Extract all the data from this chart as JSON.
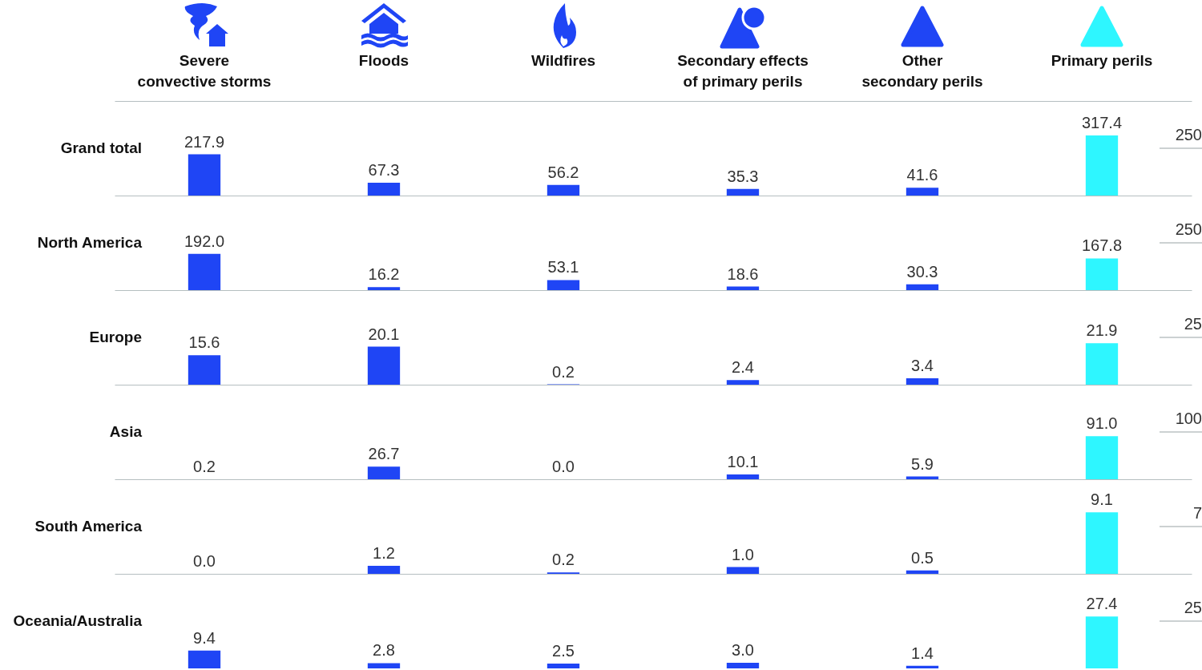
{
  "chart_data": [
    {
      "type": "bar",
      "title": "Grand total",
      "categories": [
        "Severe convective storms",
        "Floods",
        "Wildfires",
        "Secondary effects of primary perils",
        "Other secondary perils",
        "Primary perils"
      ],
      "values": [
        217.9,
        67.3,
        56.2,
        35.3,
        41.6,
        317.4
      ],
      "value_labels": [
        "217.9",
        "67.3",
        "56.2",
        "35.3",
        "41.6",
        "317.4"
      ],
      "colors": [
        "#1f45f5",
        "#1f45f5",
        "#1f45f5",
        "#1f45f5",
        "#1f45f5",
        "#2ef6ff"
      ],
      "ref_lines": [
        {
          "axis": "y",
          "value": 250,
          "label": "250"
        }
      ],
      "tick_labels": "x"
    },
    {
      "type": "bar",
      "title": "North America",
      "categories": [
        null,
        null,
        null,
        null,
        null,
        null
      ],
      "values": [
        192.0,
        16.2,
        53.1,
        18.6,
        30.3,
        167.8
      ],
      "value_labels": [
        "192.0",
        "16.2",
        "53.1",
        "18.6",
        "30.3",
        "167.8"
      ],
      "colors": [
        "#1f45f5",
        "#1f45f5",
        "#1f45f5",
        "#1f45f5",
        "#1f45f5",
        "#2ef6ff"
      ],
      "ref_lines": [
        {
          "axis": "y",
          "value": 250,
          "label": "250"
        }
      ],
      "tick_labels": false
    },
    {
      "type": "bar",
      "title": "Europe",
      "categories": [
        null,
        null,
        null,
        null,
        null,
        null
      ],
      "values": [
        15.6,
        20.1,
        0.2,
        2.4,
        3.4,
        21.9
      ],
      "value_labels": [
        "15.6",
        "20.1",
        "0.2",
        "2.4",
        "3.4",
        "21.9"
      ],
      "colors": [
        "#1f45f5",
        "#1f45f5",
        "#1f45f5",
        "#1f45f5",
        "#1f45f5",
        "#2ef6ff"
      ],
      "ref_lines": [
        {
          "axis": "y",
          "value": 25,
          "label": "25"
        }
      ],
      "tick_labels": false
    },
    {
      "type": "bar",
      "title": "Asia",
      "categories": [
        null,
        null,
        null,
        null,
        null,
        null
      ],
      "values": [
        0.2,
        26.7,
        0.0,
        10.1,
        5.9,
        91.0
      ],
      "value_labels": [
        "0.2",
        "26.7",
        "0.0",
        "10.1",
        "5.9",
        "91.0"
      ],
      "colors": [
        "#1f45f5",
        "#1f45f5",
        "#1f45f5",
        "#1f45f5",
        "#1f45f5",
        "#2ef6ff"
      ],
      "ref_lines": [
        {
          "axis": "y",
          "value": 100,
          "label": "100"
        }
      ],
      "tick_labels": false
    },
    {
      "type": "bar",
      "title": "South America",
      "categories": [
        null,
        null,
        null,
        null,
        null,
        null
      ],
      "values": [
        0.0,
        1.2,
        0.2,
        1.0,
        0.5,
        9.1
      ],
      "value_labels": [
        "0.0",
        "1.2",
        "0.2",
        "1.0",
        "0.5",
        "9.1"
      ],
      "colors": [
        "#1f45f5",
        "#1f45f5",
        "#1f45f5",
        "#1f45f5",
        "#1f45f5",
        "#2ef6ff"
      ],
      "ref_lines": [
        {
          "axis": "y",
          "value": 7,
          "label": "7"
        }
      ],
      "tick_labels": false
    },
    {
      "type": "bar",
      "title": "Oceania/Australia",
      "categories": [
        null,
        null,
        null,
        null,
        null,
        null
      ],
      "values": [
        9.4,
        2.8,
        2.5,
        3.0,
        1.4,
        27.4
      ],
      "value_labels": [
        "9.4",
        "2.8",
        "2.5",
        "3.0",
        "1.4",
        "27.4"
      ],
      "colors": [
        "#1f45f5",
        "#1f45f5",
        "#1f45f5",
        "#1f45f5",
        "#1f45f5",
        "#2ef6ff"
      ],
      "ref_lines": [
        {
          "axis": "y",
          "value": 25,
          "label": "25"
        }
      ],
      "tick_labels": false
    }
  ]
}
